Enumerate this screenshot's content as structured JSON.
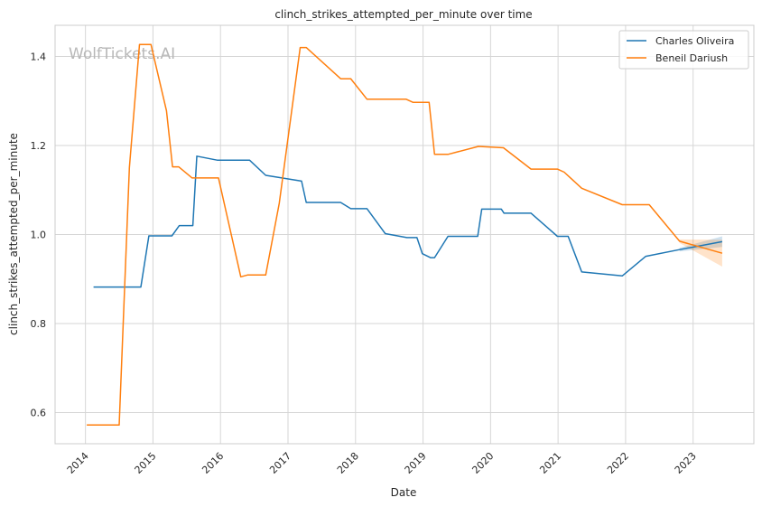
{
  "watermark": "WolfTickets.AI",
  "chart_data": {
    "type": "line",
    "title": "clinch_strikes_attempted_per_minute over time",
    "xlabel": "Date",
    "ylabel": "clinch_strikes_attempted_per_minute",
    "x_ticks": [
      "2014",
      "2015",
      "2016",
      "2017",
      "2018",
      "2019",
      "2020",
      "2021",
      "2022",
      "2023"
    ],
    "y_ticks": [
      "0.6",
      "0.8",
      "1.0",
      "1.2",
      "1.4"
    ],
    "xlim": [
      2013.55,
      2023.9
    ],
    "ylim": [
      0.53,
      1.47
    ],
    "grid": true,
    "legend_position": "top-right",
    "series": [
      {
        "name": "Charles Oliveira",
        "color": "#1f77b4",
        "x": [
          2014.12,
          2014.82,
          2014.94,
          2015.28,
          2015.39,
          2015.59,
          2015.65,
          2015.95,
          2016.43,
          2016.67,
          2017.2,
          2017.27,
          2017.78,
          2017.93,
          2018.17,
          2018.44,
          2018.76,
          2018.91,
          2018.99,
          2019.11,
          2019.17,
          2019.37,
          2019.81,
          2019.87,
          2020.16,
          2020.2,
          2020.6,
          2020.99,
          2021.15,
          2021.35,
          2021.95,
          2022.3,
          2022.8,
          2023.43
        ],
        "y": [
          0.882,
          0.882,
          0.997,
          0.997,
          1.02,
          1.02,
          1.176,
          1.167,
          1.167,
          1.133,
          1.12,
          1.072,
          1.072,
          1.058,
          1.058,
          1.002,
          0.993,
          0.993,
          0.957,
          0.948,
          0.948,
          0.996,
          0.996,
          1.057,
          1.057,
          1.048,
          1.048,
          0.996,
          0.996,
          0.916,
          0.907,
          0.951,
          0.966,
          0.984
        ]
      },
      {
        "name": "Beneil Dariush",
        "color": "#ff7f0e",
        "x": [
          2014.02,
          2014.5,
          2014.65,
          2014.8,
          2014.97,
          2015.2,
          2015.29,
          2015.38,
          2015.58,
          2015.97,
          2016.3,
          2016.4,
          2016.67,
          2016.87,
          2017.18,
          2017.27,
          2017.78,
          2017.93,
          2018.17,
          2018.75,
          2018.85,
          2019.09,
          2019.17,
          2019.37,
          2019.82,
          2020.19,
          2020.6,
          2020.99,
          2021.09,
          2021.35,
          2021.95,
          2022.35,
          2022.8,
          2023.43
        ],
        "y": [
          0.572,
          0.572,
          1.15,
          1.427,
          1.427,
          1.278,
          1.152,
          1.152,
          1.127,
          1.127,
          0.905,
          0.909,
          0.909,
          1.07,
          1.42,
          1.42,
          1.35,
          1.35,
          1.304,
          1.304,
          1.297,
          1.297,
          1.18,
          1.18,
          1.198,
          1.195,
          1.147,
          1.147,
          1.14,
          1.104,
          1.067,
          1.067,
          0.985,
          0.958
        ]
      }
    ]
  }
}
